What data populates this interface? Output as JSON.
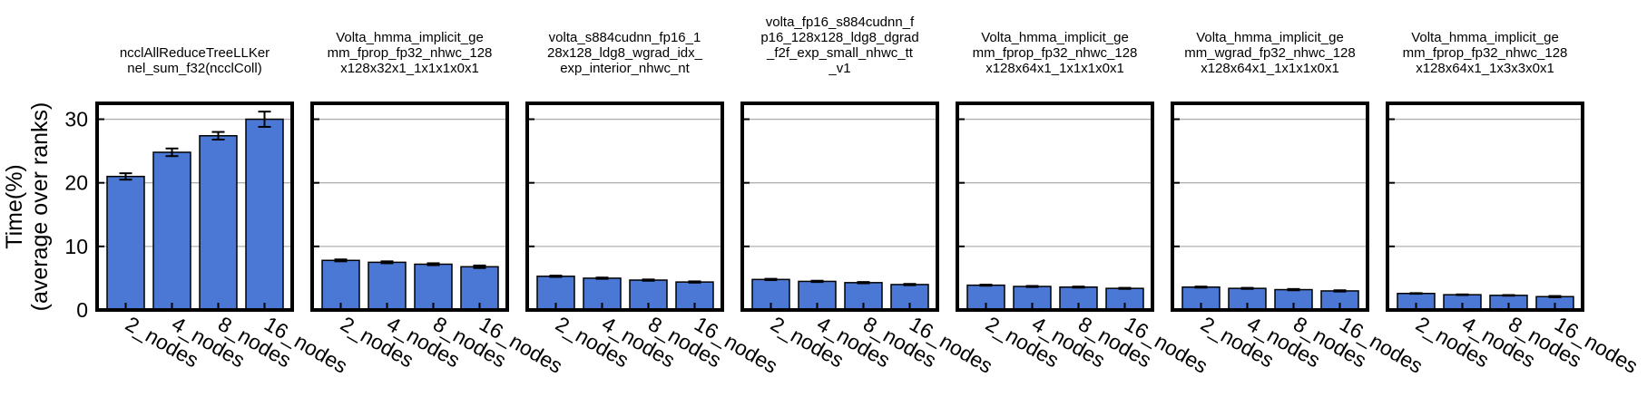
{
  "figure": {
    "ylabel_line1": "Time(%)",
    "ylabel_line2": "(average over ranks)",
    "bar_color": "#4a78d4",
    "bar_edge_color": "#000000",
    "grid_color": "#b0b0b0"
  },
  "chart_data": [
    {
      "type": "bar",
      "title_lines": [
        "ncclAllReduceTreeLLKer",
        "nel_sum_f32(ncclColl)"
      ],
      "categories": [
        "2_nodes",
        "4_nodes",
        "8_nodes",
        "16_nodes"
      ],
      "values": [
        21.0,
        24.8,
        27.4,
        30.0
      ],
      "errors": [
        0.5,
        0.6,
        0.6,
        1.2
      ],
      "ylim": [
        0,
        32.5
      ],
      "yticks": [
        0,
        10,
        20,
        30
      ],
      "grid": true
    },
    {
      "type": "bar",
      "title_lines": [
        "Volta_hmma_implicit_ge",
        "mm_fprop_fp32_nhwc_128",
        "x128x32x1_1x1x1x0x1"
      ],
      "categories": [
        "2_nodes",
        "4_nodes",
        "8_nodes",
        "16_nodes"
      ],
      "values": [
        7.8,
        7.5,
        7.2,
        6.8
      ],
      "errors": [
        0.15,
        0.15,
        0.15,
        0.2
      ],
      "ylim": [
        0,
        32.5
      ],
      "yticks": [
        0,
        10,
        20,
        30
      ],
      "grid": true
    },
    {
      "type": "bar",
      "title_lines": [
        "volta_s884cudnn_fp16_1",
        "28x128_ldg8_wgrad_idx_",
        "exp_interior_nhwc_nt"
      ],
      "categories": [
        "2_nodes",
        "4_nodes",
        "8_nodes",
        "16_nodes"
      ],
      "values": [
        5.3,
        5.0,
        4.7,
        4.4
      ],
      "errors": [
        0.1,
        0.1,
        0.1,
        0.1
      ],
      "ylim": [
        0,
        32.5
      ],
      "yticks": [
        0,
        10,
        20,
        30
      ],
      "grid": true
    },
    {
      "type": "bar",
      "title_lines": [
        "volta_fp16_s884cudnn_f",
        "p16_128x128_ldg8_dgrad",
        "_f2f_exp_small_nhwc_tt",
        "_v1"
      ],
      "categories": [
        "2_nodes",
        "4_nodes",
        "8_nodes",
        "16_nodes"
      ],
      "values": [
        4.8,
        4.5,
        4.3,
        4.0
      ],
      "errors": [
        0.1,
        0.1,
        0.1,
        0.1
      ],
      "ylim": [
        0,
        32.5
      ],
      "yticks": [
        0,
        10,
        20,
        30
      ],
      "grid": true
    },
    {
      "type": "bar",
      "title_lines": [
        "Volta_hmma_implicit_ge",
        "mm_fprop_fp32_nhwc_128",
        "x128x64x1_1x1x1x0x1"
      ],
      "categories": [
        "2_nodes",
        "4_nodes",
        "8_nodes",
        "16_nodes"
      ],
      "values": [
        3.9,
        3.7,
        3.6,
        3.4
      ],
      "errors": [
        0.08,
        0.08,
        0.08,
        0.08
      ],
      "ylim": [
        0,
        32.5
      ],
      "yticks": [
        0,
        10,
        20,
        30
      ],
      "grid": true
    },
    {
      "type": "bar",
      "title_lines": [
        "Volta_hmma_implicit_ge",
        "mm_wgrad_fp32_nhwc_128",
        "x128x64x1_1x1x1x0x1"
      ],
      "categories": [
        "2_nodes",
        "4_nodes",
        "8_nodes",
        "16_nodes"
      ],
      "values": [
        3.6,
        3.4,
        3.2,
        3.0
      ],
      "errors": [
        0.08,
        0.08,
        0.1,
        0.1
      ],
      "ylim": [
        0,
        32.5
      ],
      "yticks": [
        0,
        10,
        20,
        30
      ],
      "grid": true
    },
    {
      "type": "bar",
      "title_lines": [
        "Volta_hmma_implicit_ge",
        "mm_fprop_fp32_nhwc_128",
        "x128x64x1_1x3x3x0x1"
      ],
      "categories": [
        "2_nodes",
        "4_nodes",
        "8_nodes",
        "16_nodes"
      ],
      "values": [
        2.6,
        2.4,
        2.3,
        2.1
      ],
      "errors": [
        0.05,
        0.05,
        0.05,
        0.1
      ],
      "ylim": [
        0,
        32.5
      ],
      "yticks": [
        0,
        10,
        20,
        30
      ],
      "grid": true
    }
  ]
}
